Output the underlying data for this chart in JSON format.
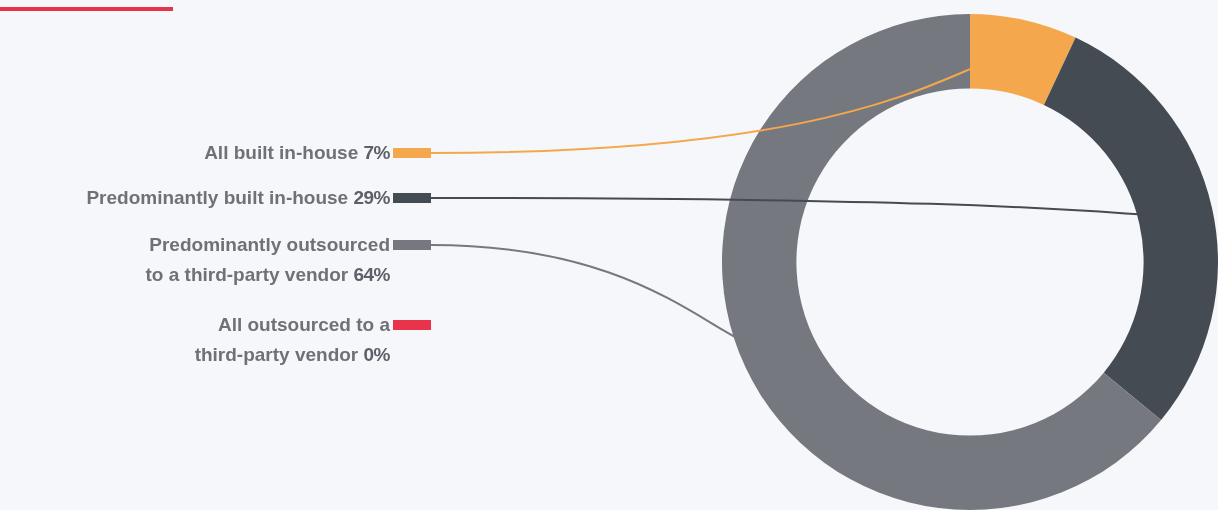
{
  "chart_data": {
    "type": "donut",
    "categories": [
      "All built in-house",
      "Predominantly built in-house",
      "Predominantly outsourced to a third-party vendor",
      "All outsourced to a third-party vendor"
    ],
    "values": [
      7,
      29,
      64,
      0
    ],
    "value_labels": [
      "7%",
      "29%",
      "64%",
      "0%"
    ],
    "colors": [
      "#f5a74e",
      "#454b53",
      "#75787f",
      "#e8344a"
    ],
    "legend": "left"
  }
}
